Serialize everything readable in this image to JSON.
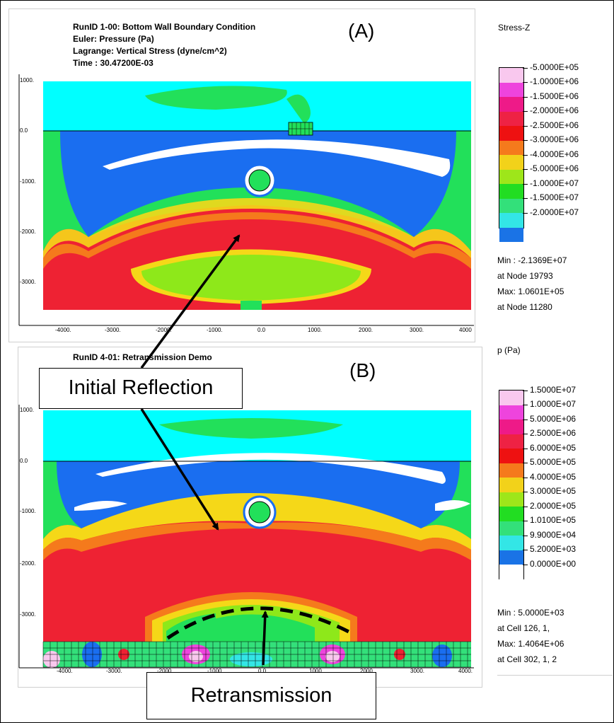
{
  "panel_a": {
    "label": "(A)",
    "header": [
      "RunID 1-00: Bottom Wall Boundary Condition",
      "Euler: Pressure (Pa)",
      "Lagrange: Vertical Stress (dyne/cm^2)",
      "Time  : 30.47200E-03"
    ],
    "y_ticks": [
      "1000.",
      "0.0",
      "-1000.",
      "-2000.",
      "-3000."
    ],
    "x_ticks": [
      "-4000.",
      "-3000.",
      "-2000.",
      "-1000.",
      "0.0",
      "1000.",
      "2000.",
      "3000.",
      "4000"
    ],
    "legend_title": "Stress-Z",
    "legend": [
      {
        "label": "-5.0000E+05",
        "color": "#f9c8ee"
      },
      {
        "label": "-1.0000E+06",
        "color": "#ee44dd"
      },
      {
        "label": "-1.5000E+06",
        "color": "#ee1a88"
      },
      {
        "label": "-2.0000E+06",
        "color": "#ee2244"
      },
      {
        "label": "-2.5000E+06",
        "color": "#ee1111"
      },
      {
        "label": "-3.0000E+06",
        "color": "#f57a1c"
      },
      {
        "label": "-4.0000E+06",
        "color": "#f2d21a"
      },
      {
        "label": "-5.0000E+06",
        "color": "#9ee61a"
      },
      {
        "label": "-1.0000E+07",
        "color": "#22dd22"
      },
      {
        "label": "-1.5000E+07",
        "color": "#33e07a"
      },
      {
        "label": "-2.0000E+07",
        "color": "#33e6e6"
      },
      {
        "label": "",
        "color": "#1a73e6"
      }
    ],
    "stats": [
      "Min : -2.1369E+07",
      "at Node  19793",
      "Max: 1.0601E+05",
      "at Node  11280"
    ]
  },
  "panel_b": {
    "label": "(B)",
    "header": [
      "RunID 4-01: Retransmission Demo"
    ],
    "y_ticks": [
      "1000.",
      "0.0",
      "-1000.",
      "-2000.",
      "-3000."
    ],
    "x_ticks": [
      "-4000.",
      "-3000.",
      "-2000.",
      "-1000.",
      "0.0",
      "1000.",
      "2000.",
      "3000.",
      "4000."
    ],
    "legend_title": "p (Pa)",
    "legend": [
      {
        "label": "1.5000E+07",
        "color": "#f9c8ee"
      },
      {
        "label": "1.0000E+07",
        "color": "#ee44dd"
      },
      {
        "label": "5.0000E+06",
        "color": "#ee1a88"
      },
      {
        "label": "2.5000E+06",
        "color": "#ee2244"
      },
      {
        "label": "6.0000E+05",
        "color": "#ee1111"
      },
      {
        "label": "5.0000E+05",
        "color": "#f57a1c"
      },
      {
        "label": "4.0000E+05",
        "color": "#f2d21a"
      },
      {
        "label": "3.0000E+05",
        "color": "#9ee61a"
      },
      {
        "label": "2.0000E+05",
        "color": "#22dd22"
      },
      {
        "label": "1.0100E+05",
        "color": "#33e07a"
      },
      {
        "label": "9.9000E+04",
        "color": "#33e6e6"
      },
      {
        "label": "5.2000E+03",
        "color": "#1a73e6"
      },
      {
        "label": "0.0000E+00",
        "color": "#ffffff"
      }
    ],
    "stats": [
      "Min : 5.0000E+03",
      "at Cell 126,  1,",
      "Max: 1.4064E+06",
      "at Cell 302,  1,  2"
    ]
  },
  "callouts": {
    "initial_reflection": "Initial Reflection",
    "retransmission": "Retransmission"
  },
  "colors": {
    "cyan": "#00ffff",
    "blue": "#1a6ef0",
    "green": "#22e05a",
    "lime": "#8ee81a",
    "yellow": "#f5d818",
    "orange": "#f57a1c",
    "red": "#ee2233",
    "white": "#ffffff"
  }
}
